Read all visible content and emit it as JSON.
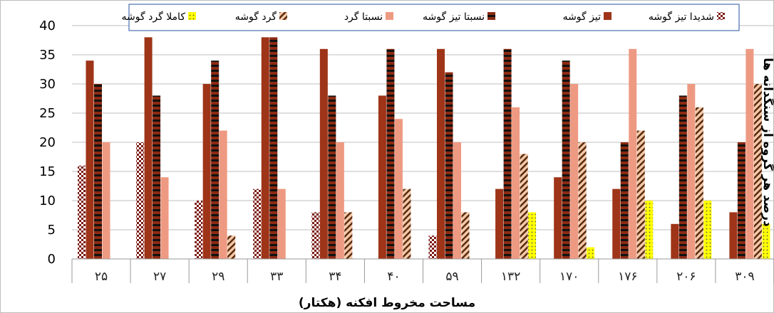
{
  "chart_data": {
    "type": "bar",
    "direction": "rtl",
    "xlabel": "مساحت مخروط افکنه (هکتار)",
    "ylabel": "درصد هر گروه از سنگدانه ها",
    "ylim": [
      0,
      40
    ],
    "yticks": [
      0,
      5,
      10,
      15,
      20,
      25,
      30,
      35,
      40
    ],
    "grid": true,
    "legend_position": "top",
    "categories": [
      "۲۵",
      "۲۷",
      "۲۹",
      "۳۳",
      "۳۴",
      "۴۰",
      "۵۹",
      "۱۳۲",
      "۱۷۰",
      "۱۷۶",
      "۲۰۶",
      "۳۰۹"
    ],
    "series": [
      {
        "name": "شدیدا تیز گوشه",
        "pattern": "checker-dark",
        "color": "#7b1a14",
        "values": [
          16,
          20,
          10,
          12,
          8,
          0,
          4,
          0,
          0,
          0,
          0,
          0
        ]
      },
      {
        "name": "تیز گوشه",
        "pattern": "solid",
        "color": "#9e3418",
        "values": [
          34,
          38,
          30,
          38,
          36,
          28,
          36,
          12,
          14,
          12,
          6,
          8
        ]
      },
      {
        "name": "نسبتا تیز گوشه",
        "pattern": "horizontal-stripes",
        "color": "#8c2a12",
        "values": [
          30,
          28,
          34,
          38,
          28,
          36,
          32,
          36,
          34,
          20,
          28,
          20
        ]
      },
      {
        "name": "نسبتا گرد",
        "pattern": "solid",
        "color": "#ee9a82",
        "values": [
          20,
          14,
          22,
          12,
          20,
          24,
          20,
          26,
          30,
          36,
          30,
          36
        ]
      },
      {
        "name": "گرد گوشه",
        "pattern": "diagonal-hatch",
        "color": "#d9a07a",
        "values": [
          0,
          0,
          4,
          0,
          8,
          12,
          8,
          18,
          20,
          22,
          26,
          30
        ]
      },
      {
        "name": "کاملا گرد گوشه",
        "pattern": "dots-yellow",
        "color": "#ffff00",
        "values": [
          0,
          0,
          0,
          0,
          0,
          0,
          0,
          8,
          2,
          10,
          10,
          6
        ]
      }
    ]
  }
}
